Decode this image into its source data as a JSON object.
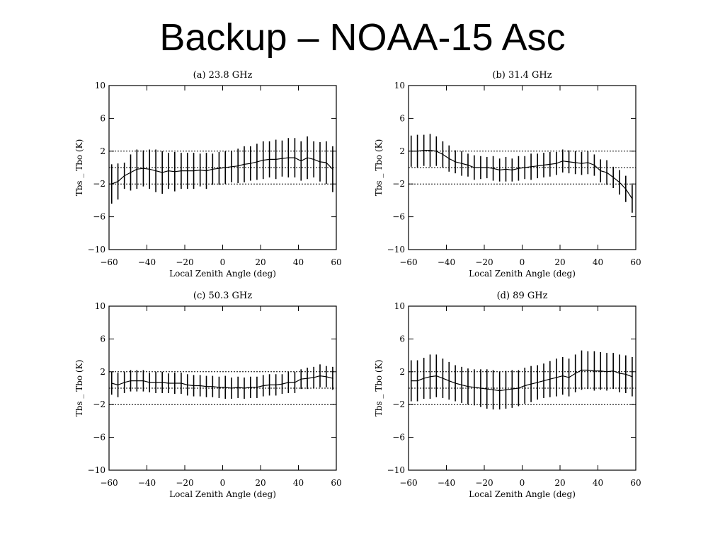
{
  "slide": {
    "title": "Backup – NOAA-15 Asc"
  },
  "colors": {
    "line": "#000000",
    "background": "#ffffff"
  },
  "chart_data": [
    {
      "type": "line",
      "title": "(a) 23.8 GHz",
      "xlabel": "Local Zenith Angle (deg)",
      "ylabel": "Tbs _ Tbo (K)",
      "xlim": [
        -60,
        60
      ],
      "ylim": [
        -10,
        10
      ],
      "xticks": [
        -60,
        -40,
        -20,
        0,
        20,
        40,
        60
      ],
      "yticks": [
        10,
        6,
        2,
        -2,
        -6,
        -10
      ],
      "reference_lines": [
        2,
        0,
        -2
      ],
      "series": [
        {
          "x": [
            -58.6,
            -55.3,
            -51.9,
            -48.6,
            -45.3,
            -41.9,
            -38.6,
            -35.3,
            -31.9,
            -28.6,
            -25.3,
            -21.9,
            -18.6,
            -15.3,
            -11.9,
            -8.6,
            -5.3,
            -1.9,
            1.4,
            4.7,
            8.1,
            11.4,
            14.7,
            18.1,
            21.4,
            24.7,
            28.1,
            31.4,
            34.7,
            38.1,
            41.4,
            44.7,
            48.1,
            51.4,
            54.7,
            58.1
          ],
          "values": [
            -2.0,
            -1.7,
            -1.0,
            -0.6,
            -0.2,
            -0.1,
            -0.2,
            -0.4,
            -0.6,
            -0.4,
            -0.5,
            -0.4,
            -0.4,
            -0.4,
            -0.3,
            -0.4,
            -0.2,
            -0.1,
            0.0,
            0.1,
            0.2,
            0.4,
            0.5,
            0.7,
            0.9,
            1.0,
            1.0,
            1.1,
            1.2,
            1.2,
            0.8,
            1.2,
            1.0,
            0.7,
            0.6,
            -0.2
          ],
          "err": [
            2.4,
            2.2,
            1.6,
            2.2,
            2.4,
            2.2,
            2.4,
            2.6,
            2.6,
            2.2,
            2.4,
            2.2,
            2.2,
            2.2,
            2.0,
            2.2,
            1.9,
            2.0,
            2.0,
            1.9,
            2.1,
            2.2,
            2.1,
            2.2,
            2.3,
            2.2,
            2.4,
            2.2,
            2.4,
            2.4,
            2.4,
            2.6,
            2.2,
            2.4,
            2.6,
            2.8
          ]
        }
      ]
    },
    {
      "type": "line",
      "title": "(b) 31.4 GHz",
      "xlabel": "Local Zenith Angle (deg)",
      "ylabel": "Tbs _ Tbo (K)",
      "xlim": [
        -60,
        60
      ],
      "ylim": [
        -10,
        10
      ],
      "xticks": [
        -60,
        -40,
        -20,
        0,
        20,
        40,
        60
      ],
      "yticks": [
        10,
        6,
        2,
        -2,
        -6,
        -10
      ],
      "reference_lines": [
        2,
        0,
        -2
      ],
      "series": [
        {
          "x": [
            -58.6,
            -55.3,
            -51.9,
            -48.6,
            -45.3,
            -41.9,
            -38.6,
            -35.3,
            -31.9,
            -28.6,
            -25.3,
            -21.9,
            -18.6,
            -15.3,
            -11.9,
            -8.6,
            -5.3,
            -1.9,
            1.4,
            4.7,
            8.1,
            11.4,
            14.7,
            18.1,
            21.4,
            24.7,
            28.1,
            31.4,
            34.7,
            38.1,
            41.4,
            44.7,
            48.1,
            51.4,
            54.7,
            58.1
          ],
          "values": [
            2.0,
            2.0,
            2.1,
            2.1,
            2.0,
            1.6,
            1.1,
            0.7,
            0.5,
            0.3,
            0.0,
            0.0,
            0.0,
            -0.1,
            -0.3,
            -0.2,
            -0.3,
            -0.1,
            0.0,
            0.1,
            0.2,
            0.3,
            0.4,
            0.5,
            0.8,
            0.7,
            0.6,
            0.5,
            0.6,
            0.3,
            -0.4,
            -0.6,
            -1.2,
            -1.8,
            -2.6,
            -3.8
          ],
          "err": [
            1.9,
            2.0,
            1.9,
            2.0,
            1.8,
            1.6,
            1.6,
            1.4,
            1.5,
            1.4,
            1.5,
            1.4,
            1.3,
            1.5,
            1.4,
            1.5,
            1.4,
            1.5,
            1.4,
            1.6,
            1.5,
            1.5,
            1.5,
            1.4,
            1.4,
            1.4,
            1.4,
            1.4,
            1.4,
            1.3,
            1.4,
            1.5,
            1.3,
            1.5,
            1.6,
            1.7
          ]
        }
      ]
    },
    {
      "type": "line",
      "title": "(c) 50.3 GHz",
      "xlabel": "Local Zenith Angle (deg)",
      "ylabel": "Tbs _ Tbo (K)",
      "xlim": [
        -60,
        60
      ],
      "ylim": [
        -10,
        10
      ],
      "xticks": [
        -60,
        -40,
        -20,
        0,
        20,
        40,
        60
      ],
      "yticks": [
        10,
        6,
        2,
        -2,
        -6,
        -10
      ],
      "reference_lines": [
        2,
        0,
        -2
      ],
      "series": [
        {
          "x": [
            -58.6,
            -55.3,
            -51.9,
            -48.6,
            -45.3,
            -41.9,
            -38.6,
            -35.3,
            -31.9,
            -28.6,
            -25.3,
            -21.9,
            -18.6,
            -15.3,
            -11.9,
            -8.6,
            -5.3,
            -1.9,
            1.4,
            4.7,
            8.1,
            11.4,
            14.7,
            18.1,
            21.4,
            24.7,
            28.1,
            31.4,
            34.7,
            38.1,
            41.4,
            44.7,
            48.1,
            51.4,
            54.7,
            58.1
          ],
          "values": [
            0.6,
            0.4,
            0.7,
            0.9,
            0.9,
            0.9,
            0.7,
            0.7,
            0.7,
            0.6,
            0.6,
            0.6,
            0.4,
            0.3,
            0.3,
            0.2,
            0.2,
            0.1,
            0.1,
            0.0,
            0.1,
            0.0,
            0.1,
            0.1,
            0.3,
            0.4,
            0.4,
            0.5,
            0.7,
            0.7,
            1.1,
            1.2,
            1.3,
            1.5,
            1.4,
            1.2
          ],
          "err": [
            1.4,
            1.5,
            1.3,
            1.3,
            1.3,
            1.3,
            1.2,
            1.3,
            1.3,
            1.2,
            1.3,
            1.3,
            1.3,
            1.3,
            1.3,
            1.3,
            1.3,
            1.3,
            1.4,
            1.3,
            1.3,
            1.3,
            1.3,
            1.3,
            1.3,
            1.3,
            1.3,
            1.2,
            1.3,
            1.3,
            1.2,
            1.3,
            1.3,
            1.4,
            1.3,
            1.4
          ]
        }
      ]
    },
    {
      "type": "line",
      "title": "(d) 89 GHz",
      "xlabel": "Local Zenith Angle (deg)",
      "ylabel": "Tbs _ Tbo (K)",
      "xlim": [
        -60,
        60
      ],
      "ylim": [
        -10,
        10
      ],
      "xticks": [
        -60,
        -40,
        -20,
        0,
        20,
        40,
        60
      ],
      "yticks": [
        10,
        6,
        2,
        -2,
        -6,
        -10
      ],
      "reference_lines": [
        2,
        0,
        -2
      ],
      "series": [
        {
          "x": [
            -58.6,
            -55.3,
            -51.9,
            -48.6,
            -45.3,
            -41.9,
            -38.6,
            -35.3,
            -31.9,
            -28.6,
            -25.3,
            -21.9,
            -18.6,
            -15.3,
            -11.9,
            -8.6,
            -5.3,
            -1.9,
            1.4,
            4.7,
            8.1,
            11.4,
            14.7,
            18.1,
            21.4,
            24.7,
            28.1,
            31.4,
            34.7,
            38.1,
            41.4,
            44.7,
            48.1,
            51.4,
            54.7,
            58.1
          ],
          "values": [
            0.9,
            0.9,
            1.2,
            1.4,
            1.5,
            1.2,
            0.9,
            0.6,
            0.4,
            0.2,
            0.1,
            0.0,
            -0.1,
            -0.2,
            -0.3,
            -0.2,
            -0.1,
            0.0,
            0.3,
            0.5,
            0.7,
            0.9,
            1.1,
            1.3,
            1.5,
            1.3,
            1.8,
            2.2,
            2.2,
            2.1,
            2.1,
            2.0,
            2.1,
            1.8,
            1.7,
            1.4
          ],
          "err": [
            2.5,
            2.5,
            2.5,
            2.7,
            2.6,
            2.4,
            2.3,
            2.2,
            2.2,
            2.2,
            2.2,
            2.3,
            2.4,
            2.4,
            2.3,
            2.3,
            2.3,
            2.2,
            2.2,
            2.2,
            2.1,
            2.1,
            2.2,
            2.3,
            2.3,
            2.3,
            2.3,
            2.4,
            2.3,
            2.4,
            2.3,
            2.3,
            2.2,
            2.3,
            2.3,
            2.4
          ]
        }
      ]
    }
  ]
}
